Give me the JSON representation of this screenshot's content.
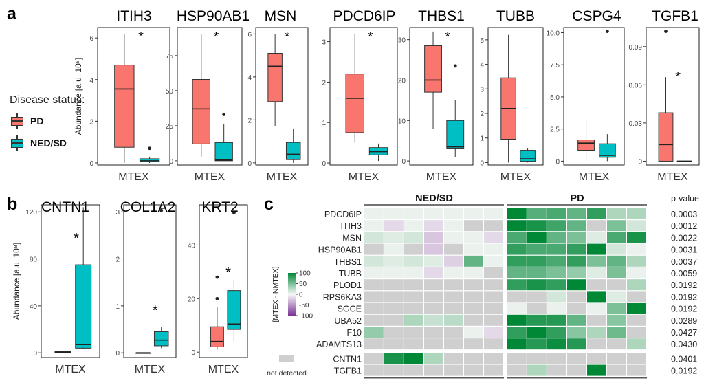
{
  "panel_labels": [
    "a",
    "b",
    "c"
  ],
  "legend": {
    "title": "Disease status:",
    "items": [
      {
        "label": "PD",
        "color": "#F8766D"
      },
      {
        "label": "NED/SD",
        "color": "#00BFC4"
      }
    ]
  },
  "star": "*",
  "ylabel_box": "Abundance [a.u. 10⁸]",
  "colors": {
    "pd": "#F8766D",
    "ned": "#00BFC4",
    "not_detected": "#cfcfcf"
  },
  "chart_data": [
    {
      "type": "box",
      "title": "ITIH3",
      "category": "MTEX",
      "ylim": [
        -0.1,
        6.5
      ],
      "yticks": [
        0,
        2,
        4,
        6
      ],
      "ylabel": "Abundance [a.u. 10⁸]",
      "significant": true,
      "series": [
        {
          "name": "PD",
          "min": 0.0,
          "q1": 0.75,
          "median": 3.55,
          "q3": 4.7,
          "max": 6.2,
          "outliers": []
        },
        {
          "name": "NED/SD",
          "min": 0.0,
          "q1": 0.05,
          "median": 0.1,
          "q3": 0.2,
          "max": 0.3,
          "outliers": [
            0.7
          ]
        }
      ]
    },
    {
      "type": "box",
      "title": "HSP90AB1",
      "category": "MTEX",
      "ylim": [
        -3,
        95
      ],
      "yticks": [
        0,
        25,
        50,
        75
      ],
      "significant": true,
      "series": [
        {
          "name": "PD",
          "min": 3,
          "q1": 12,
          "median": 37,
          "q3": 58,
          "max": 90,
          "outliers": []
        },
        {
          "name": "NED/SD",
          "min": 0,
          "q1": 0,
          "median": 0.5,
          "q3": 13,
          "max": 26,
          "outliers": [
            33
          ]
        }
      ]
    },
    {
      "type": "box",
      "title": "MSN",
      "category": "MTEX",
      "ylim": [
        -0.1,
        6.3
      ],
      "yticks": [
        0,
        2,
        4,
        6
      ],
      "significant": true,
      "series": [
        {
          "name": "PD",
          "min": 1.7,
          "q1": 2.85,
          "median": 4.5,
          "q3": 5.1,
          "max": 6.0,
          "outliers": []
        },
        {
          "name": "NED/SD",
          "min": 0.0,
          "q1": 0.15,
          "median": 0.4,
          "q3": 0.95,
          "max": 1.6,
          "outliers": []
        }
      ]
    },
    {
      "type": "box",
      "title": "PDCD6IP",
      "category": "MTEX",
      "ylim": [
        -0.05,
        3.35
      ],
      "yticks": [
        0,
        1,
        2,
        3
      ],
      "significant": true,
      "series": [
        {
          "name": "PD",
          "min": 0.5,
          "q1": 0.75,
          "median": 1.6,
          "q3": 2.2,
          "max": 3.2,
          "outliers": []
        },
        {
          "name": "NED/SD",
          "min": 0.05,
          "q1": 0.2,
          "median": 0.28,
          "q3": 0.38,
          "max": 0.48,
          "outliers": []
        }
      ]
    },
    {
      "type": "box",
      "title": "THBS1",
      "category": "MTEX",
      "ylim": [
        -1,
        33
      ],
      "yticks": [
        0,
        10,
        20,
        30
      ],
      "significant": true,
      "series": [
        {
          "name": "PD",
          "min": 8,
          "q1": 17,
          "median": 20,
          "q3": 28.5,
          "max": 32,
          "outliers": []
        },
        {
          "name": "NED/SD",
          "min": 1,
          "q1": 3,
          "median": 3.5,
          "q3": 10,
          "max": 15,
          "outliers": [
            23.5
          ]
        }
      ]
    },
    {
      "type": "box",
      "title": "TUBB",
      "category": "MTEX",
      "ylim": [
        -0.1,
        5.5
      ],
      "yticks": [
        0,
        1,
        2,
        3,
        4,
        5
      ],
      "significant": false,
      "series": [
        {
          "name": "PD",
          "min": 0.0,
          "q1": 0.95,
          "median": 2.2,
          "q3": 3.45,
          "max": 5.2,
          "outliers": []
        },
        {
          "name": "NED/SD",
          "min": 0.0,
          "q1": 0.05,
          "median": 0.15,
          "q3": 0.5,
          "max": 0.6,
          "outliers": []
        }
      ]
    },
    {
      "type": "box",
      "title": "CSPG4",
      "category": "MTEX",
      "ylim": [
        -0.3,
        10.4
      ],
      "yticks": [
        0.0,
        2.5,
        5.0,
        7.5,
        10.0
      ],
      "ytick_labels": [
        "0",
        "2.5",
        "5.0",
        "7.5",
        "10.0"
      ],
      "significant": false,
      "series": [
        {
          "name": "PD",
          "min": 0.0,
          "q1": 0.85,
          "median": 1.4,
          "q3": 1.65,
          "max": 3.3,
          "outliers": []
        },
        {
          "name": "NED/SD",
          "min": 0.0,
          "q1": 0.3,
          "median": 0.45,
          "q3": 1.35,
          "max": 2.1,
          "outliers": [
            10.1
          ]
        }
      ]
    },
    {
      "type": "box",
      "title": "TGFB1",
      "category": "MTEX",
      "ylim": [
        -0.003,
        0.105
      ],
      "yticks": [
        0,
        0.03,
        0.06,
        0.09
      ],
      "ytick_labels": [
        "0",
        "0.03",
        "0.06",
        "0.09"
      ],
      "significant": true,
      "series": [
        {
          "name": "PD",
          "min": 0.0,
          "q1": 0.0,
          "median": 0.013,
          "q3": 0.038,
          "max": 0.066,
          "outliers": [
            0.102
          ]
        },
        {
          "name": "NED/SD",
          "min": 0.0,
          "q1": 0.0,
          "median": 0.0,
          "q3": 0.0,
          "max": 0.0,
          "outliers": []
        }
      ]
    },
    {
      "type": "box",
      "title": "CNTN1",
      "category": "MTEX",
      "ylim": [
        -4,
        126
      ],
      "yticks": [
        0,
        40,
        80,
        120
      ],
      "ylabel": "Abundance [a.u. 10⁸]",
      "significant": true,
      "series": [
        {
          "name": "PD",
          "min": 0,
          "q1": 0,
          "median": 0.5,
          "q3": 1,
          "max": 1.5,
          "outliers": []
        },
        {
          "name": "NED/SD",
          "min": 3,
          "q1": 4,
          "median": 7,
          "q3": 75,
          "max": 124,
          "outliers": []
        }
      ]
    },
    {
      "type": "box",
      "title": "COL1A2",
      "category": "MTEX",
      "ylim": [
        -0.1,
        3.15
      ],
      "yticks": [
        0,
        1,
        2,
        3
      ],
      "significant": true,
      "series": [
        {
          "name": "PD",
          "min": 0.0,
          "q1": 0.0,
          "median": 0.0,
          "q3": 0.0,
          "max": 0.0,
          "outliers": []
        },
        {
          "name": "NED/SD",
          "min": 0.1,
          "q1": 0.15,
          "median": 0.27,
          "q3": 0.45,
          "max": 0.55,
          "outliers": [
            3.03
          ]
        }
      ]
    },
    {
      "type": "box",
      "title": "KRT2",
      "category": "MTEX",
      "ylim": [
        -2,
        55
      ],
      "yticks": [
        0,
        20,
        40
      ],
      "significant": true,
      "series": [
        {
          "name": "PD",
          "min": 1,
          "q1": 2,
          "median": 4,
          "q3": 9.5,
          "max": 17,
          "outliers": [
            20,
            28
          ]
        },
        {
          "name": "NED/SD",
          "min": 4,
          "q1": 8.5,
          "median": 10.5,
          "q3": 23,
          "max": 27,
          "outliers": [
            52
          ]
        }
      ]
    },
    {
      "type": "heatmap",
      "groups": [
        "NED/SD",
        "PD"
      ],
      "legend_title": "[MTEX - NMTEX]",
      "colorbar_ticks": [
        "100",
        "50",
        "0",
        "-50",
        "-100"
      ],
      "colorbar_values": [
        100,
        50,
        0,
        -50,
        -100
      ],
      "not_detected_label": "not detected",
      "pvalue_header": "p-value",
      "rows": [
        "PDCD6IP",
        "ITIH3",
        "MSN",
        "HSP90AB1",
        "THBS1",
        "TUBB",
        "PLOD1",
        "RPS6KA3",
        "SGCE",
        "UBA52",
        "F10",
        "ADAMTS13",
        "CNTN1",
        "TGFB1"
      ],
      "pvalues": [
        "0.0003",
        "0.0012",
        "0.0022",
        "0.0031",
        "0.0037",
        "0.0059",
        "0.0192",
        "0.0192",
        "0.0192",
        "0.0289",
        "0.0427",
        "0.0430",
        "0.0401",
        "0.0192"
      ],
      "values": [
        [
          5,
          5,
          5,
          5,
          5,
          5,
          5,
          100,
          65,
          70,
          60,
          80,
          30,
          30
        ],
        [
          5,
          -15,
          5,
          -15,
          5,
          null,
          null,
          100,
          90,
          75,
          60,
          null,
          50,
          15
        ],
        [
          15,
          10,
          15,
          -25,
          5,
          5,
          -15,
          70,
          100,
          60,
          50,
          10,
          70,
          90
        ],
        [
          null,
          5,
          null,
          -25,
          null,
          5,
          5,
          80,
          70,
          70,
          80,
          100,
          15,
          5
        ],
        [
          15,
          10,
          15,
          10,
          -20,
          60,
          5,
          80,
          80,
          70,
          80,
          50,
          60,
          30
        ],
        [
          5,
          5,
          5,
          -15,
          5,
          5,
          null,
          60,
          60,
          50,
          40,
          10,
          50,
          5
        ],
        [
          null,
          null,
          null,
          null,
          null,
          null,
          null,
          80,
          90,
          80,
          100,
          null,
          null,
          30
        ],
        [
          null,
          null,
          null,
          null,
          null,
          null,
          null,
          null,
          null,
          15,
          null,
          100,
          10,
          null
        ],
        [
          null,
          null,
          null,
          null,
          null,
          null,
          null,
          5,
          null,
          5,
          null,
          5,
          50,
          100
        ],
        [
          null,
          null,
          30,
          20,
          25,
          null,
          null,
          100,
          85,
          85,
          60,
          null,
          45,
          null
        ],
        [
          40,
          null,
          null,
          null,
          null,
          5,
          -15,
          80,
          100,
          80,
          45,
          30,
          55,
          null
        ],
        [
          null,
          null,
          null,
          null,
          null,
          null,
          null,
          100,
          85,
          95,
          85,
          null,
          null,
          30
        ],
        [
          null,
          90,
          100,
          30,
          null,
          null,
          null,
          null,
          null,
          null,
          null,
          null,
          null,
          null
        ],
        [
          null,
          null,
          null,
          null,
          null,
          null,
          null,
          null,
          30,
          null,
          null,
          100,
          null,
          null
        ]
      ]
    }
  ]
}
